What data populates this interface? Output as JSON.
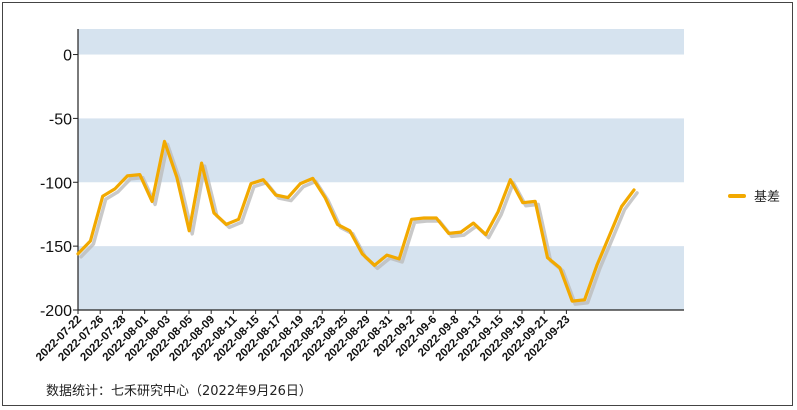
{
  "chart_data": {
    "type": "line",
    "title": "",
    "xlabel": "",
    "ylabel": "",
    "ylim": [
      -200,
      20
    ],
    "yticks": [
      0,
      -50,
      -100,
      -150,
      -200
    ],
    "grid": "alternating horizontal bands",
    "legend_position": "right",
    "colors": {
      "line": "#F2A900",
      "shadow": "#BBBBBB",
      "band": "#D6E3EF"
    },
    "x_tick_labels": [
      "2022-07-22",
      "2022-07-26",
      "2022-07-28",
      "2022-08-01",
      "2022-08-03",
      "2022-08-05",
      "2022-08-09",
      "2022-08-11",
      "2022-08-15",
      "2022-08-17",
      "2022-08-19",
      "2022-08-23",
      "2022-08-25",
      "2022-08-29",
      "2022-08-31",
      "2022-09-2",
      "2022-09-6",
      "2022-09-8",
      "2022-09-13",
      "2022-09-15",
      "2022-09-19",
      "2022-09-21",
      "2022-09-23"
    ],
    "series": [
      {
        "name": "基差",
        "values": [
          -156,
          -146,
          -111,
          -105,
          -95,
          -94,
          -115,
          -68,
          -96,
          -138,
          -85,
          -124,
          -133,
          -129,
          -101,
          -98,
          -110,
          -112,
          -101,
          -97,
          -112,
          -133,
          -138,
          -156,
          -165,
          -157,
          -160,
          -129,
          -128,
          -128,
          -140,
          -139,
          -132,
          -141,
          -123,
          -98,
          -116,
          -115,
          -159,
          -167,
          -193,
          -192,
          -165,
          -142,
          -119,
          -106
        ]
      }
    ]
  },
  "source_text": "数据统计：七禾研究中心（2022年9月26日）"
}
